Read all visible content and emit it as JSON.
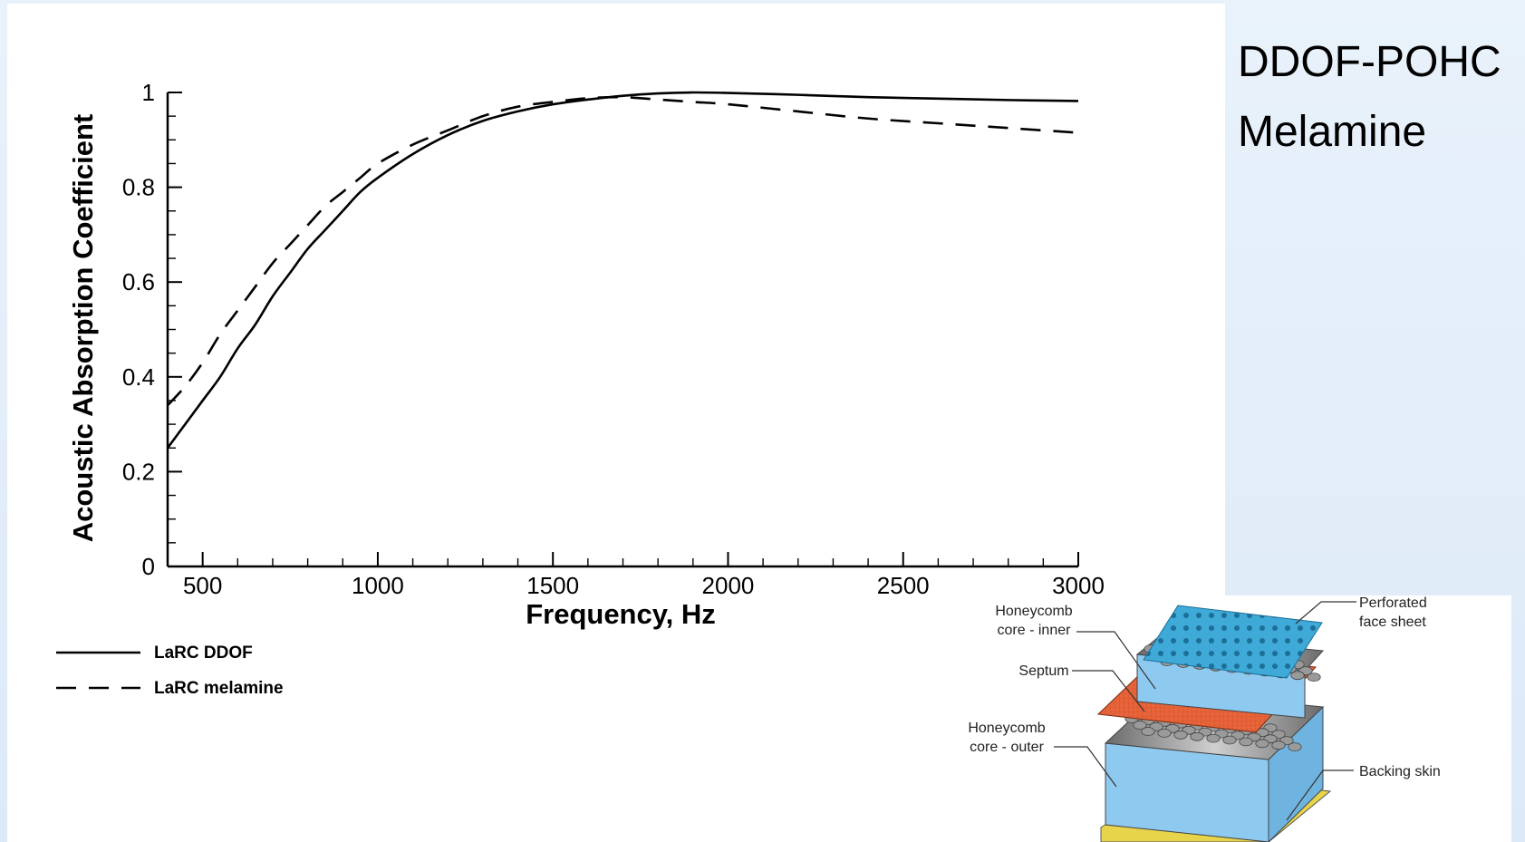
{
  "side_labels": [
    "DDOF-POHC",
    "Melamine"
  ],
  "chart_data": {
    "type": "line",
    "title": "",
    "xlabel": "Frequency, Hz",
    "ylabel": "Acoustic Absorption Coefficient",
    "xlim": [
      400,
      3000
    ],
    "ylim": [
      0,
      1
    ],
    "x_ticks": [
      500,
      1000,
      1500,
      2000,
      2500,
      3000
    ],
    "y_ticks": [
      0,
      0.2,
      0.4,
      0.6,
      0.8,
      1
    ],
    "y_tick_labels": [
      "0",
      "0.2",
      "0.4",
      "0.6",
      "0.8",
      "1"
    ],
    "grid": false,
    "legend_position": "bottom-left, below plot",
    "series": [
      {
        "name": "LaRC DDOF",
        "style": "solid",
        "color": "#000000",
        "x": [
          400,
          450,
          500,
          550,
          600,
          650,
          700,
          750,
          800,
          850,
          900,
          950,
          1000,
          1100,
          1200,
          1300,
          1400,
          1500,
          1600,
          1700,
          1800,
          1900,
          2000,
          2200,
          2400,
          2600,
          2800,
          3000
        ],
        "y": [
          0.25,
          0.3,
          0.35,
          0.4,
          0.46,
          0.51,
          0.57,
          0.62,
          0.67,
          0.71,
          0.75,
          0.79,
          0.82,
          0.87,
          0.91,
          0.94,
          0.96,
          0.975,
          0.985,
          0.993,
          0.998,
          1.0,
          0.999,
          0.995,
          0.99,
          0.987,
          0.984,
          0.982
        ]
      },
      {
        "name": "LaRC melamine",
        "style": "dashed",
        "color": "#000000",
        "x": [
          400,
          450,
          500,
          550,
          600,
          650,
          700,
          750,
          800,
          850,
          900,
          950,
          1000,
          1100,
          1200,
          1300,
          1400,
          1500,
          1600,
          1700,
          1800,
          1900,
          2000,
          2200,
          2400,
          2600,
          2800,
          3000
        ],
        "y": [
          0.34,
          0.38,
          0.43,
          0.49,
          0.54,
          0.59,
          0.64,
          0.68,
          0.72,
          0.76,
          0.79,
          0.82,
          0.85,
          0.89,
          0.92,
          0.95,
          0.97,
          0.98,
          0.988,
          0.99,
          0.985,
          0.98,
          0.975,
          0.96,
          0.945,
          0.935,
          0.925,
          0.915
        ]
      }
    ]
  },
  "diagram": {
    "labels": {
      "perforated_face_sheet": [
        "Perforated",
        "face sheet"
      ],
      "honeycomb_inner": [
        "Honeycomb",
        "core - inner"
      ],
      "septum": [
        "Septum"
      ],
      "honeycomb_outer": [
        "Honeycomb",
        "core - outer"
      ],
      "backing_skin": [
        "Backing skin"
      ]
    },
    "colors": {
      "face_sheet": "#3fa9d8",
      "face_sheet_holes": "#1c6f96",
      "septum": "#e8643a",
      "honeycomb_light": "#cfcfcf",
      "honeycomb_dark": "#6b6b6b",
      "cell_walls": "#8ec9ef",
      "backing_skin": "#e8d44a"
    }
  }
}
